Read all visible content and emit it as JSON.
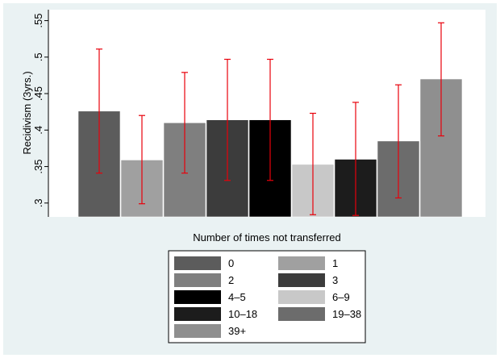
{
  "chart_data": {
    "type": "bar",
    "xlabel": "Number of times not transferred",
    "ylabel": "Recidivism (3yrs.)",
    "ylim": [
      0.281,
      0.565
    ],
    "yticks": [
      0.3,
      0.35,
      0.4,
      0.45,
      0.5,
      0.55
    ],
    "ytick_labels": [
      ".3",
      ".35",
      ".4",
      ".45",
      ".5",
      ".55"
    ],
    "grid": false,
    "legend_position": "bottom",
    "error_bar_color": "#e8000b",
    "series": [
      {
        "name": "0",
        "value": 0.426,
        "ci_low": 0.341,
        "ci_high": 0.511,
        "color": "#5c5c5c"
      },
      {
        "name": "1",
        "value": 0.359,
        "ci_low": 0.299,
        "ci_high": 0.42,
        "color": "#a0a0a0"
      },
      {
        "name": "2",
        "value": 0.41,
        "ci_low": 0.341,
        "ci_high": 0.479,
        "color": "#7f7f7f"
      },
      {
        "name": "3",
        "value": 0.414,
        "ci_low": 0.331,
        "ci_high": 0.497,
        "color": "#3c3c3c"
      },
      {
        "name": "4–5",
        "value": 0.414,
        "ci_low": 0.331,
        "ci_high": 0.497,
        "color": "#000000"
      },
      {
        "name": "6–9",
        "value": 0.353,
        "ci_low": 0.284,
        "ci_high": 0.423,
        "color": "#c8c8c8"
      },
      {
        "name": "10–18",
        "value": 0.36,
        "ci_low": 0.283,
        "ci_high": 0.438,
        "color": "#1c1c1c"
      },
      {
        "name": "19–38",
        "value": 0.385,
        "ci_low": 0.307,
        "ci_high": 0.462,
        "color": "#6c6c6c"
      },
      {
        "name": "39+",
        "value": 0.47,
        "ci_low": 0.392,
        "ci_high": 0.547,
        "color": "#8f8f8f"
      }
    ]
  }
}
